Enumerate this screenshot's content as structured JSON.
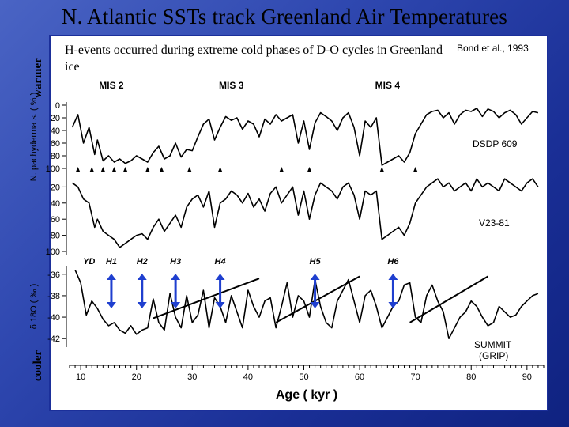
{
  "slide": {
    "title": "N. Atlantic SSTs track Greenland Air Temperatures",
    "warmer_label": "warmer",
    "cooler_label": "cooler",
    "caption": "H-events occurred during extreme cold phases of D-O cycles in Greenland ice",
    "citation": "Bond et al., 1993"
  },
  "colors": {
    "background": "#2a44ad",
    "panel": "#ffffff",
    "trace": "#000000",
    "arrow": "#1f3fcf"
  },
  "chart_data": {
    "type": "line",
    "xlabel": "Age ( kyr )",
    "xlim": [
      8,
      93
    ],
    "xticks": [
      10,
      20,
      30,
      40,
      50,
      60,
      70,
      80,
      90
    ],
    "mis_labels": [
      {
        "text": "MIS 2",
        "age": 15.5
      },
      {
        "text": "MIS 3",
        "age": 37
      },
      {
        "text": "MIS 4",
        "age": 65
      }
    ],
    "panels": [
      {
        "series": "DSDP 609",
        "ylabel": "N. pachyderma s. ( % )",
        "ylim": [
          0,
          100
        ],
        "yticks": [
          0,
          20,
          40,
          60,
          80,
          100
        ],
        "markers_age": [
          9.5,
          12,
          14,
          16,
          18,
          22,
          24.5,
          29.5,
          35,
          46,
          51,
          64,
          70
        ],
        "x": [
          8.5,
          9.5,
          10.5,
          11.5,
          12.5,
          13,
          14,
          15,
          16,
          17,
          18,
          19,
          20,
          21,
          22,
          23,
          24,
          25,
          26,
          27,
          28,
          29,
          30,
          31,
          32,
          33,
          34,
          35,
          36,
          37,
          38,
          39,
          40,
          41,
          42,
          43,
          44,
          45,
          46,
          47,
          48,
          49,
          50,
          51,
          52,
          53,
          54,
          55,
          56,
          57,
          58,
          59,
          60,
          61,
          62,
          63,
          64,
          65,
          66,
          67,
          68,
          69,
          70,
          71,
          72,
          73,
          74,
          75,
          76,
          77,
          78,
          79,
          80,
          81,
          82,
          83,
          84,
          85,
          86,
          87,
          88,
          89,
          90,
          91,
          92
        ],
        "y": [
          35,
          15,
          60,
          35,
          78,
          55,
          88,
          80,
          90,
          85,
          92,
          88,
          80,
          85,
          90,
          75,
          65,
          85,
          80,
          60,
          82,
          70,
          72,
          50,
          30,
          22,
          55,
          35,
          18,
          24,
          20,
          38,
          25,
          30,
          50,
          22,
          30,
          15,
          25,
          20,
          15,
          60,
          25,
          70,
          28,
          12,
          18,
          25,
          40,
          20,
          12,
          35,
          80,
          25,
          35,
          20,
          95,
          90,
          85,
          80,
          90,
          75,
          45,
          30,
          15,
          10,
          8,
          20,
          12,
          30,
          15,
          8,
          10,
          5,
          18,
          6,
          10,
          20,
          12,
          8,
          15,
          30,
          20,
          10,
          12
        ]
      },
      {
        "series": "V23-81",
        "ylabel": "",
        "ylim": [
          0,
          100
        ],
        "yticks": [
          20,
          40,
          60,
          80,
          100
        ],
        "x": [
          8.5,
          9.5,
          10.5,
          11.5,
          12.5,
          13,
          14,
          15,
          16,
          17,
          18,
          19,
          20,
          21,
          22,
          23,
          24,
          25,
          26,
          27,
          28,
          29,
          30,
          31,
          32,
          33,
          34,
          35,
          36,
          37,
          38,
          39,
          40,
          41,
          42,
          43,
          44,
          45,
          46,
          47,
          48,
          49,
          50,
          51,
          52,
          53,
          54,
          55,
          56,
          57,
          58,
          59,
          60,
          61,
          62,
          63,
          64,
          65,
          66,
          67,
          68,
          69,
          70,
          71,
          72,
          73,
          74,
          75,
          76,
          77,
          78,
          79,
          80,
          81,
          82,
          83,
          84,
          85,
          86,
          87,
          88,
          89,
          90,
          91,
          92
        ],
        "y": [
          15,
          20,
          35,
          40,
          70,
          60,
          75,
          80,
          85,
          95,
          90,
          85,
          80,
          78,
          85,
          70,
          60,
          75,
          65,
          55,
          70,
          45,
          35,
          30,
          45,
          25,
          70,
          40,
          35,
          25,
          30,
          40,
          28,
          45,
          35,
          50,
          28,
          20,
          40,
          30,
          20,
          55,
          25,
          60,
          30,
          15,
          20,
          25,
          35,
          20,
          15,
          30,
          60,
          25,
          30,
          25,
          85,
          80,
          75,
          70,
          80,
          65,
          40,
          30,
          20,
          15,
          10,
          20,
          15,
          25,
          20,
          15,
          25,
          10,
          20,
          15,
          20,
          25,
          10,
          15,
          20,
          25,
          15,
          10,
          20
        ]
      },
      {
        "series": "SUMMIT (GRIP)",
        "ylabel": "δ 18O ( ‰ )",
        "ylim": [
          -42.5,
          -35.5
        ],
        "yticks": [
          -36,
          -38,
          -40,
          -42
        ],
        "x": [
          9,
          10,
          11,
          12,
          13,
          14,
          15,
          16,
          17,
          18,
          19,
          20,
          21,
          22,
          23,
          24,
          25,
          26,
          27,
          28,
          29,
          30,
          31,
          32,
          33,
          34,
          35,
          36,
          37,
          38,
          39,
          40,
          41,
          42,
          43,
          44,
          45,
          46,
          47,
          48,
          49,
          50,
          51,
          52,
          53,
          54,
          55,
          56,
          57,
          58,
          59,
          60,
          61,
          62,
          63,
          64,
          65,
          66,
          67,
          68,
          69,
          70,
          71,
          72,
          73,
          74,
          75,
          76,
          77,
          78,
          79,
          80,
          81,
          82,
          83,
          84,
          85,
          86,
          87,
          88,
          89,
          90,
          91,
          92
        ],
        "y": [
          -35.6,
          -36.8,
          -39.8,
          -38.5,
          -39.2,
          -40.2,
          -40.8,
          -40.5,
          -41.2,
          -41.5,
          -40.8,
          -41.6,
          -41.2,
          -41.0,
          -38.3,
          -40.5,
          -41.2,
          -37.8,
          -40.0,
          -41.0,
          -38.0,
          -40.5,
          -39.8,
          -37.5,
          -41.0,
          -38.2,
          -39.0,
          -40.5,
          -38.0,
          -39.5,
          -41.0,
          -37.5,
          -39.0,
          -40.0,
          -38.5,
          -38.2,
          -41.0,
          -39.0,
          -36.8,
          -40.0,
          -38.0,
          -38.5,
          -40.0,
          -36.5,
          -39.0,
          -40.5,
          -41.0,
          -38.5,
          -37.5,
          -36.5,
          -38.5,
          -40.5,
          -38.0,
          -37.5,
          -39.0,
          -41.0,
          -40.0,
          -39.0,
          -38.5,
          -37.0,
          -36.8,
          -40.0,
          -40.5,
          -38.0,
          -37.0,
          -38.5,
          -39.5,
          -42.0,
          -41.0,
          -40.0,
          -39.5,
          -38.5,
          -39.0,
          -40.0,
          -40.8,
          -40.5,
          -39.0,
          -39.5,
          -40.0,
          -39.8,
          -39.0,
          -38.5,
          -38.0,
          -37.8
        ]
      }
    ],
    "trend_lines": [
      {
        "x": [
          23,
          42
        ],
        "y": [
          -40.1,
          -36.4
        ]
      },
      {
        "x": [
          45,
          60
        ],
        "y": [
          -40.5,
          -36.2
        ]
      },
      {
        "x": [
          69,
          83
        ],
        "y": [
          -40.5,
          -36.2
        ]
      }
    ],
    "heinrich_events": [
      {
        "label": "YD",
        "age": 11.5
      },
      {
        "label": "H1",
        "age": 15.5
      },
      {
        "label": "H2",
        "age": 21
      },
      {
        "label": "H3",
        "age": 27
      },
      {
        "label": "H4",
        "age": 35
      },
      {
        "label": "H5",
        "age": 52
      },
      {
        "label": "H6",
        "age": 66
      }
    ]
  }
}
